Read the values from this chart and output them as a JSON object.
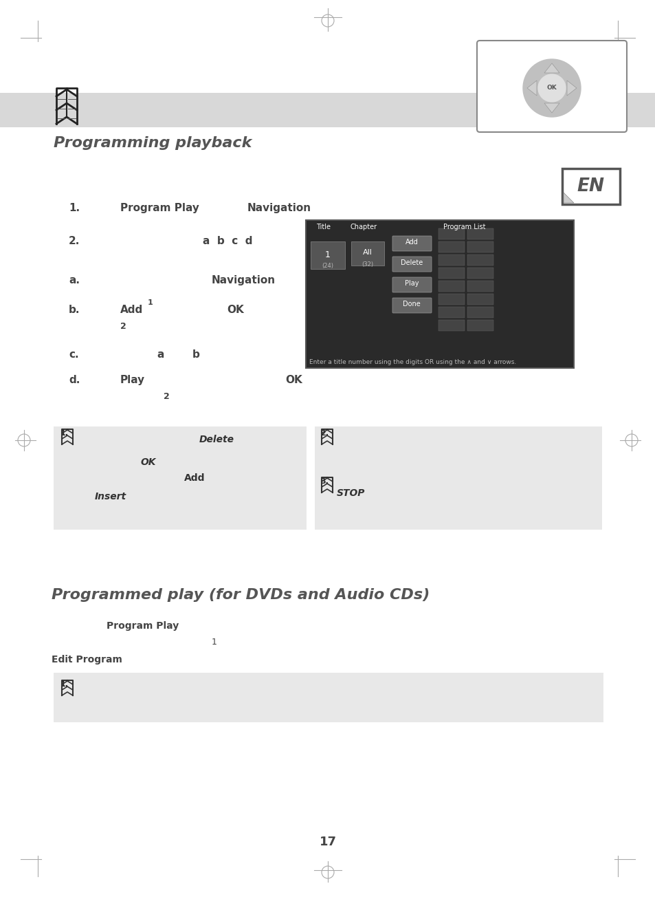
{
  "bg_color": "#ffffff",
  "page_number": "17",
  "title1": "Programming playback",
  "title2": "Programmed play (for DVDs and Audio CDs)",
  "gray_box_color": "#e8e8e8",
  "header_band_color": "#d8d8d8",
  "tick_color": "#aaaaaa",
  "text_color": "#444444",
  "bold_color": "#444444",
  "screen_bg": "#2a2a2a",
  "screen_border": "#555555",
  "ok_box_color": "#888888",
  "en_badge_color": "#555555"
}
